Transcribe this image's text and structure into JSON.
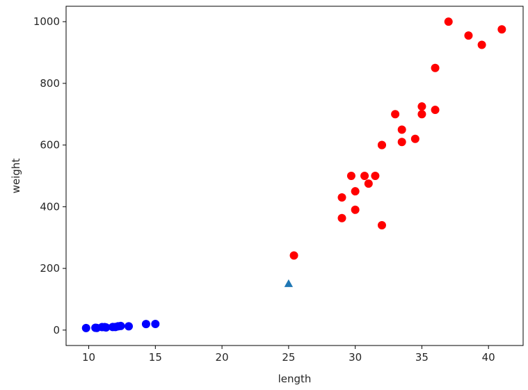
{
  "chart_data": {
    "type": "scatter",
    "title": "",
    "xlabel": "length",
    "ylabel": "weight",
    "xlim": [
      8.3,
      42.6
    ],
    "ylim": [
      -50,
      1050
    ],
    "xticks": [
      10,
      15,
      20,
      25,
      30,
      35,
      40
    ],
    "yticks": [
      0,
      200,
      400,
      600,
      800,
      1000
    ],
    "grid": false,
    "series": [
      {
        "marker": "circle",
        "color": "#ff0000",
        "points": [
          [
            25.4,
            242
          ],
          [
            29.0,
            363
          ],
          [
            29.0,
            430
          ],
          [
            29.7,
            500
          ],
          [
            30.0,
            450
          ],
          [
            30.0,
            390
          ],
          [
            30.7,
            500
          ],
          [
            31.0,
            475
          ],
          [
            31.5,
            500
          ],
          [
            32.0,
            340
          ],
          [
            32.0,
            600
          ],
          [
            32.0,
            600
          ],
          [
            33.0,
            700
          ],
          [
            33.5,
            650
          ],
          [
            33.5,
            610
          ],
          [
            34.5,
            620
          ],
          [
            35.0,
            700
          ],
          [
            35.0,
            725
          ],
          [
            36.0,
            850
          ],
          [
            36.0,
            714
          ],
          [
            37.0,
            1000
          ],
          [
            38.5,
            955
          ],
          [
            39.5,
            925
          ],
          [
            41.0,
            975
          ]
        ]
      },
      {
        "marker": "circle",
        "color": "#0000ff",
        "points": [
          [
            9.8,
            6.7
          ],
          [
            10.5,
            7.5
          ],
          [
            10.6,
            7.0
          ],
          [
            11.0,
            9.7
          ],
          [
            11.2,
            9.8
          ],
          [
            11.3,
            8.7
          ],
          [
            11.8,
            10.0
          ],
          [
            12.0,
            9.9
          ],
          [
            12.2,
            12.2
          ],
          [
            12.4,
            13.4
          ],
          [
            13.0,
            12.2
          ],
          [
            14.3,
            19.7
          ],
          [
            15.0,
            19.9
          ]
        ]
      },
      {
        "marker": "triangle",
        "color": "#1f77b4",
        "points": [
          [
            25,
            150
          ]
        ]
      }
    ]
  }
}
